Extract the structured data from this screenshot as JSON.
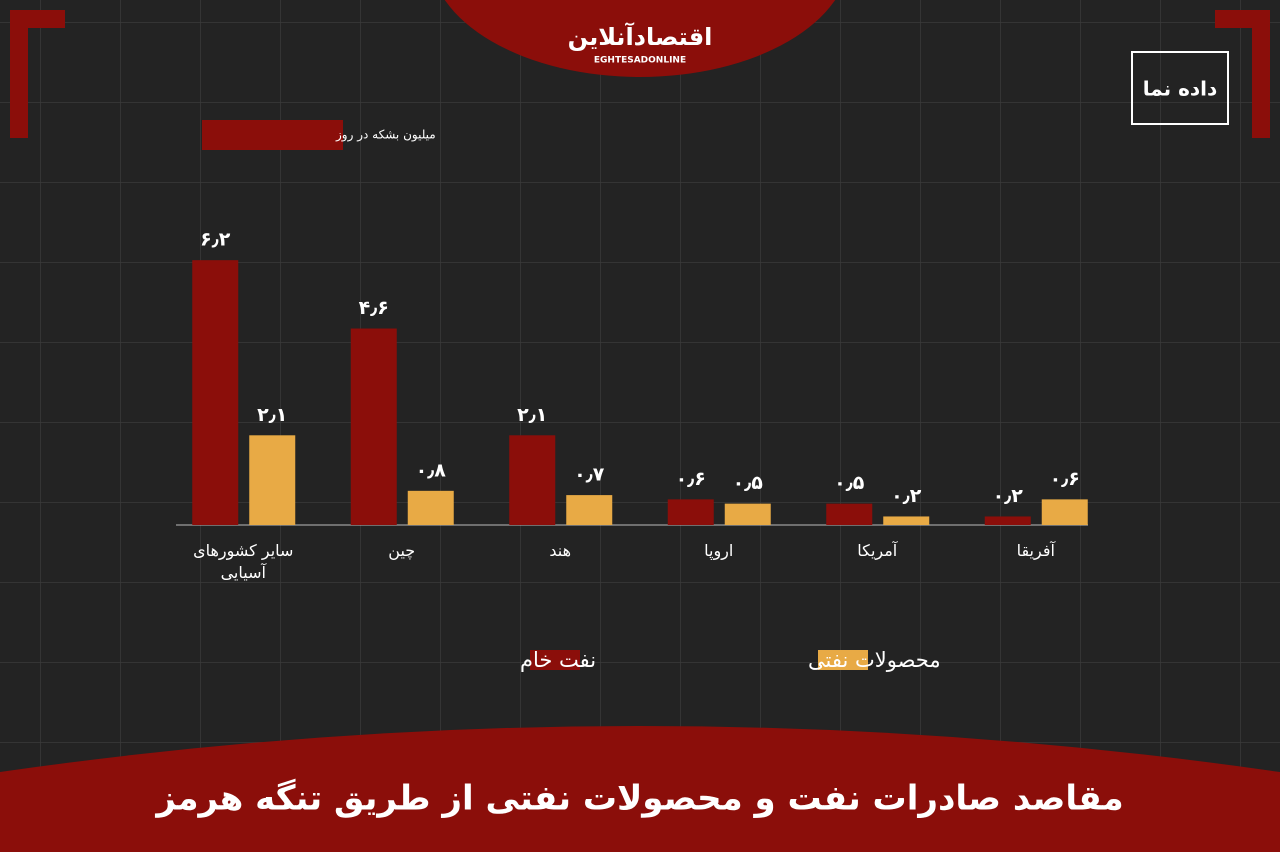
{
  "header": {
    "logo": "اقتصادآنلاین",
    "logo_subtitle": "EGHTESADONLINE",
    "brand": "داده نما"
  },
  "chart_data": {
    "type": "bar",
    "title": "مقاصد صادرات نفت و محصولات نفتی از طریق تنگه هرمز",
    "y_label": "میلیون بشکه در روز",
    "categories": [
      "سایر کشورهای آسیایی",
      "چین",
      "هند",
      "اروپا",
      "آمریکا",
      "آفریقا"
    ],
    "series": [
      {
        "name": "نفت خام",
        "color": "#8b0e0a",
        "values": [
          6.2,
          4.6,
          2.1,
          0.6,
          0.5,
          0.2
        ],
        "value_labels": [
          "۶٫۲",
          "۴٫۶",
          "۲٫۱",
          "۰٫۶",
          "۰٫۵",
          "۰٫۲"
        ]
      },
      {
        "name": "محصولات نفتی",
        "color": "#e8aa45",
        "values": [
          2.1,
          0.8,
          0.7,
          0.5,
          0.2,
          0.6
        ],
        "value_labels": [
          "۲٫۱",
          "۰٫۸",
          "۰٫۷",
          "۰٫۵",
          "۰٫۲",
          "۰٫۶"
        ]
      }
    ],
    "ylim": [
      0,
      7
    ]
  }
}
